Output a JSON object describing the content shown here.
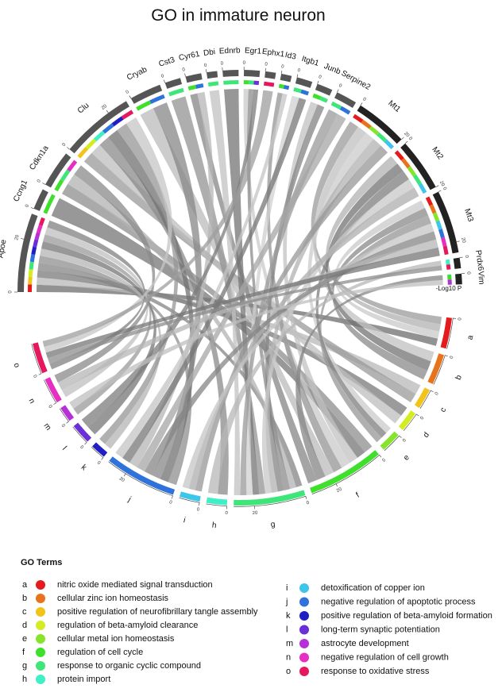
{
  "chart_data": {
    "type": "chord",
    "title": "GO in immature neuron",
    "scale_label": "-Log10 P",
    "legend_title": "GO Terms",
    "arc_ticks": [
      0,
      20
    ],
    "genes": [
      {
        "name": "Apoe",
        "value": 30
      },
      {
        "name": "Ccng1",
        "value": 8
      },
      {
        "name": "Cdkn1a",
        "value": 14
      },
      {
        "name": "Clu",
        "value": 28
      },
      {
        "name": "Cryab",
        "value": 12
      },
      {
        "name": "Cst3",
        "value": 6
      },
      {
        "name": "Cyr61",
        "value": 6
      },
      {
        "name": "Dbi",
        "value": 4
      },
      {
        "name": "Ednrb",
        "value": 6
      },
      {
        "name": "Egr1",
        "value": 6
      },
      {
        "name": "Ephx1",
        "value": 4
      },
      {
        "name": "Id3",
        "value": 4
      },
      {
        "name": "Itgb1",
        "value": 6
      },
      {
        "name": "Junb",
        "value": 6
      },
      {
        "name": "Serpine2",
        "value": 8
      },
      {
        "name": "Mt1",
        "value": 20
      },
      {
        "name": "Mt2",
        "value": 20
      },
      {
        "name": "Mt3",
        "value": 24
      },
      {
        "name": "Prdx6",
        "value": 4
      },
      {
        "name": "Vim",
        "value": 4
      }
    ],
    "terms": [
      {
        "letter": "a",
        "name": "nitric oxide mediated signal transduction",
        "color": "#e41a1c",
        "value": 12,
        "genes": [
          "Mt1",
          "Mt2",
          "Mt3",
          "Apoe"
        ]
      },
      {
        "letter": "b",
        "name": "cellular zinc ion homeostasis",
        "color": "#e8731b",
        "value": 12,
        "genes": [
          "Mt1",
          "Mt2",
          "Mt3"
        ]
      },
      {
        "letter": "c",
        "name": "positive regulation of neurofibrillary tangle assembly",
        "color": "#f2c318",
        "value": 8,
        "genes": [
          "Apoe",
          "Clu"
        ]
      },
      {
        "letter": "d",
        "name": "regulation of beta-amyloid clearance",
        "color": "#d4ec22",
        "value": 8,
        "genes": [
          "Apoe",
          "Clu"
        ]
      },
      {
        "letter": "e",
        "name": "cellular metal ion homeostasis",
        "color": "#86e52a",
        "value": 8,
        "genes": [
          "Mt1",
          "Mt2",
          "Mt3"
        ]
      },
      {
        "letter": "f",
        "name": "regulation of cell cycle",
        "color": "#3fe02b",
        "value": 30,
        "genes": [
          "Cdkn1a",
          "Ccng1",
          "Junb",
          "Egr1",
          "Id3",
          "Cryab",
          "Vim",
          "Cyr61"
        ]
      },
      {
        "letter": "g",
        "name": "response to organic cyclic compound",
        "color": "#3ee67a",
        "value": 28,
        "genes": [
          "Apoe",
          "Cdkn1a",
          "Egr1",
          "Junb",
          "Mt1",
          "Mt2",
          "Cst3",
          "Ednrb",
          "Itgb1",
          "Serpine2",
          "Dbi"
        ]
      },
      {
        "letter": "h",
        "name": "protein import",
        "color": "#3ff0c6",
        "value": 8,
        "genes": [
          "Clu",
          "Prdx6"
        ]
      },
      {
        "letter": "i",
        "name": "detoxification of copper ion",
        "color": "#3ec6ea",
        "value": 8,
        "genes": [
          "Mt1",
          "Mt2",
          "Mt3"
        ]
      },
      {
        "letter": "j",
        "name": "negative regulation of apoptotic process",
        "color": "#2f72dc",
        "value": 28,
        "genes": [
          "Apoe",
          "Clu",
          "Cryab",
          "Mt3",
          "Serpine2",
          "Cyr61",
          "Itgb1",
          "Id3"
        ]
      },
      {
        "letter": "k",
        "name": "positive regulation of beta-amyloid formation",
        "color": "#1f1fc4",
        "value": 6,
        "genes": [
          "Apoe",
          "Clu"
        ]
      },
      {
        "letter": "l",
        "name": "long-term synaptic potentiation",
        "color": "#6a2fd6",
        "value": 8,
        "genes": [
          "Apoe",
          "Egr1"
        ]
      },
      {
        "letter": "m",
        "name": "astrocyte development",
        "color": "#b530d8",
        "value": 6,
        "genes": [
          "Apoe",
          "Vim"
        ]
      },
      {
        "letter": "n",
        "name": "negative regulation of cell growth",
        "color": "#e62ec2",
        "value": 10,
        "genes": [
          "Apoe",
          "Mt3",
          "Cdkn1a"
        ]
      },
      {
        "letter": "o",
        "name": "response to oxidative stress",
        "color": "#e4175f",
        "value": 12,
        "genes": [
          "Apoe",
          "Prdx6",
          "Mt3",
          "Clu",
          "Ephx1"
        ]
      }
    ]
  }
}
